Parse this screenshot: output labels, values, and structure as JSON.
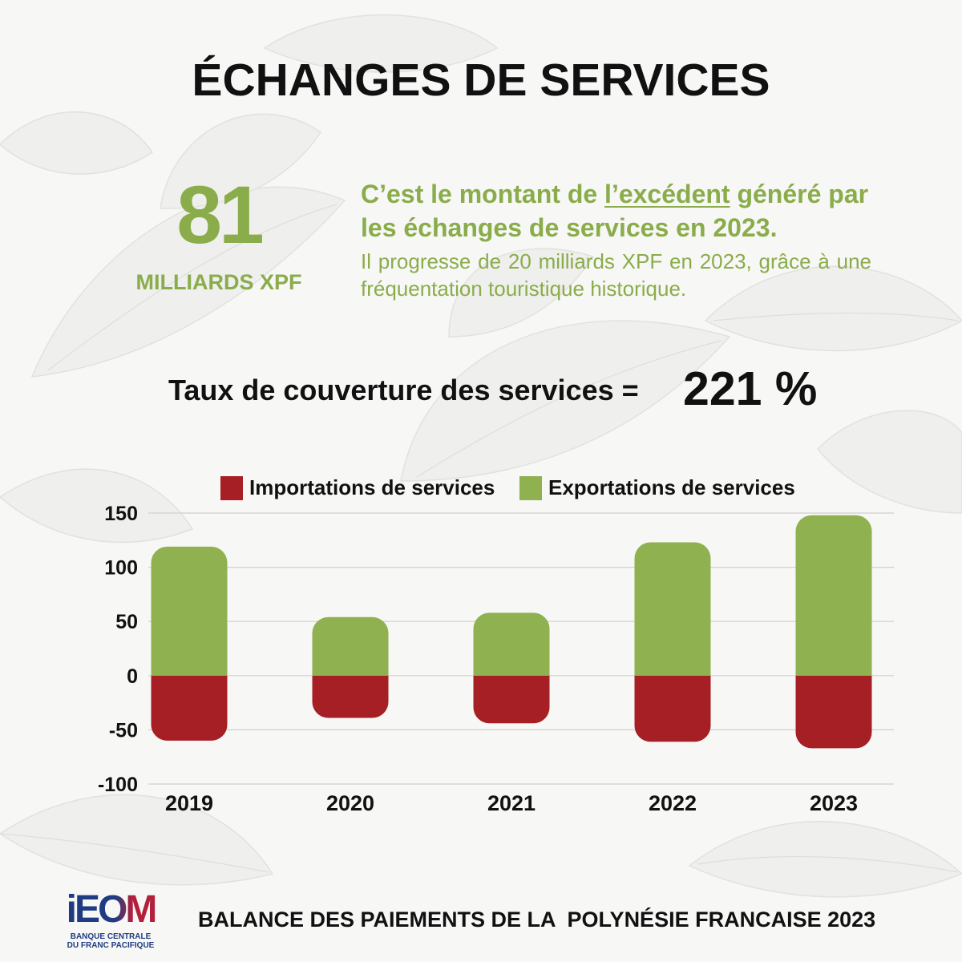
{
  "colors": {
    "text_green": "#8aac4a",
    "text_dark": "#111111",
    "logo_navy": "#1f3c82",
    "logo_red": "#b3203a"
  },
  "header": {
    "title": "ÉCHANGES DE SERVICES"
  },
  "highlight": {
    "value": "81",
    "unit": "MILLIARDS XPF",
    "headline_before": "C’est le montant de ",
    "headline_emphasis": "l’excédent",
    "headline_after": " généré par",
    "headline_line2": "les échanges de services en 2023.",
    "detail": "Il progresse de 20 milliards XPF en 2023, grâce à une fréquentation touristique historique."
  },
  "coverage": {
    "label": "Taux de couverture des services =",
    "value": "221 %"
  },
  "chart_data": {
    "type": "bar",
    "stacked": true,
    "categories": [
      "2019",
      "2020",
      "2021",
      "2022",
      "2023"
    ],
    "series": [
      {
        "name": "Importations de services",
        "color": "#a51f24",
        "values": [
          -60,
          -39,
          -44,
          -61,
          -67
        ]
      },
      {
        "name": "Exportations de services",
        "color": "#8fb14f",
        "values": [
          119,
          54,
          58,
          123,
          148
        ]
      }
    ],
    "ylim": [
      -100,
      150
    ],
    "yticks": [
      150,
      100,
      50,
      0,
      -50,
      -100
    ],
    "grid": true,
    "legend_position": "top"
  },
  "footer": {
    "logo": {
      "wordmark": "iEOM",
      "line1": "BANQUE CENTRALE",
      "line2": "DU FRANC PACIFIQUE"
    },
    "caption": "BALANCE DES PAIEMENTS DE LA  POLYNÉSIE FRANCAISE 2023"
  }
}
